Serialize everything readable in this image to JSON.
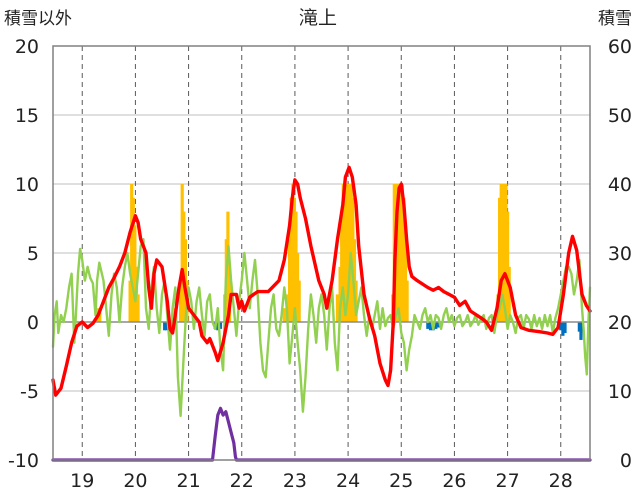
{
  "chart_data": {
    "type": "bar+line",
    "title": "滝上",
    "left_axis": {
      "label": "積雪以外",
      "range": [
        -10,
        20
      ],
      "ticks": [
        -10,
        -5,
        0,
        5,
        10,
        15,
        20
      ]
    },
    "right_axis": {
      "label": "積雪",
      "range": [
        0,
        60
      ],
      "ticks": [
        0,
        10,
        20,
        30,
        40,
        50,
        60
      ]
    },
    "x_range": [
      18.45,
      28.55
    ],
    "x_ticks": [
      19,
      20,
      21,
      22,
      23,
      24,
      25,
      26,
      27,
      28
    ],
    "grid": true,
    "colors": {
      "temperature": "#ff0000",
      "wind": "#92d050",
      "snow_depth": "#7030a0",
      "precip": "#ffc000",
      "sunshine": "#0070c0"
    },
    "precip_bars": [
      [
        19.3,
        1
      ],
      [
        19.33,
        1
      ],
      [
        19.9,
        3
      ],
      [
        19.93,
        10
      ],
      [
        19.96,
        9
      ],
      [
        19.99,
        7
      ],
      [
        20.02,
        4
      ],
      [
        20.05,
        2
      ],
      [
        20.75,
        1
      ],
      [
        20.85,
        3
      ],
      [
        20.88,
        10
      ],
      [
        20.91,
        8
      ],
      [
        20.94,
        6
      ],
      [
        20.97,
        3
      ],
      [
        21.68,
        2
      ],
      [
        21.71,
        6
      ],
      [
        21.74,
        8
      ],
      [
        21.77,
        4
      ],
      [
        22.8,
        1
      ],
      [
        22.85,
        2
      ],
      [
        22.9,
        6
      ],
      [
        22.93,
        9
      ],
      [
        22.96,
        10
      ],
      [
        22.99,
        9
      ],
      [
        23.02,
        8
      ],
      [
        23.05,
        5
      ],
      [
        23.08,
        3
      ],
      [
        23.8,
        2
      ],
      [
        23.85,
        4
      ],
      [
        23.88,
        8
      ],
      [
        23.91,
        10
      ],
      [
        23.94,
        10
      ],
      [
        23.97,
        10
      ],
      [
        24.0,
        10
      ],
      [
        24.03,
        10
      ],
      [
        24.06,
        10
      ],
      [
        24.09,
        9
      ],
      [
        24.12,
        6
      ],
      [
        24.15,
        3
      ],
      [
        24.84,
        2
      ],
      [
        24.87,
        10
      ],
      [
        24.9,
        10
      ],
      [
        24.93,
        10
      ],
      [
        24.96,
        10
      ],
      [
        24.99,
        10
      ],
      [
        25.02,
        10
      ],
      [
        25.05,
        9
      ],
      [
        25.08,
        6
      ],
      [
        25.11,
        3
      ],
      [
        26.82,
        2
      ],
      [
        26.85,
        9
      ],
      [
        26.88,
        10
      ],
      [
        26.91,
        10
      ],
      [
        26.94,
        10
      ],
      [
        26.97,
        10
      ],
      [
        27.0,
        8
      ],
      [
        27.03,
        4
      ]
    ],
    "sunshine_bars": [
      [
        20.55,
        -0.6
      ],
      [
        20.58,
        -0.6
      ],
      [
        20.62,
        -0.5
      ],
      [
        20.65,
        -0.5
      ],
      [
        21.5,
        -0.5
      ],
      [
        21.55,
        -0.6
      ],
      [
        21.6,
        -0.5
      ],
      [
        25.5,
        -0.5
      ],
      [
        25.55,
        -0.6
      ],
      [
        25.6,
        -0.6
      ],
      [
        25.65,
        -0.5
      ],
      [
        25.7,
        -0.4
      ],
      [
        28.0,
        -0.6
      ],
      [
        28.04,
        -1.0
      ],
      [
        28.08,
        -0.8
      ],
      [
        28.35,
        -0.7
      ],
      [
        28.38,
        -1.3
      ]
    ],
    "temperature": [
      [
        18.45,
        -4.2
      ],
      [
        18.5,
        -5.3
      ],
      [
        18.6,
        -4.8
      ],
      [
        18.7,
        -3.2
      ],
      [
        18.8,
        -1.5
      ],
      [
        18.9,
        -0.3
      ],
      [
        19.0,
        0.0
      ],
      [
        19.1,
        -0.4
      ],
      [
        19.2,
        -0.1
      ],
      [
        19.3,
        0.5
      ],
      [
        19.4,
        1.5
      ],
      [
        19.5,
        2.5
      ],
      [
        19.6,
        3.2
      ],
      [
        19.7,
        4.0
      ],
      [
        19.8,
        5.0
      ],
      [
        19.9,
        6.5
      ],
      [
        20.0,
        7.7
      ],
      [
        20.05,
        7.2
      ],
      [
        20.1,
        6.0
      ],
      [
        20.2,
        5.0
      ],
      [
        20.25,
        2.5
      ],
      [
        20.3,
        1.0
      ],
      [
        20.35,
        3.5
      ],
      [
        20.4,
        4.5
      ],
      [
        20.5,
        4.0
      ],
      [
        20.6,
        1.5
      ],
      [
        20.65,
        -0.5
      ],
      [
        20.7,
        -0.8
      ],
      [
        20.75,
        0.5
      ],
      [
        20.82,
        2.5
      ],
      [
        20.88,
        3.8
      ],
      [
        20.93,
        2.5
      ],
      [
        21.0,
        1.0
      ],
      [
        21.1,
        0.5
      ],
      [
        21.2,
        0.0
      ],
      [
        21.25,
        -1.0
      ],
      [
        21.35,
        -1.5
      ],
      [
        21.4,
        -1.2
      ],
      [
        21.5,
        -2.2
      ],
      [
        21.55,
        -2.8
      ],
      [
        21.65,
        -1.5
      ],
      [
        21.7,
        -0.5
      ],
      [
        21.75,
        0.5
      ],
      [
        21.8,
        2.0
      ],
      [
        21.9,
        2.0
      ],
      [
        21.95,
        1.0
      ],
      [
        22.0,
        1.5
      ],
      [
        22.05,
        0.8
      ],
      [
        22.15,
        1.8
      ],
      [
        22.3,
        2.2
      ],
      [
        22.5,
        2.2
      ],
      [
        22.7,
        3.0
      ],
      [
        22.8,
        4.5
      ],
      [
        22.9,
        7.0
      ],
      [
        22.95,
        9.0
      ],
      [
        23.0,
        10.3
      ],
      [
        23.05,
        10.0
      ],
      [
        23.1,
        9.0
      ],
      [
        23.2,
        7.5
      ],
      [
        23.3,
        5.5
      ],
      [
        23.45,
        3.0
      ],
      [
        23.55,
        2.0
      ],
      [
        23.6,
        1.0
      ],
      [
        23.7,
        3.0
      ],
      [
        23.8,
        6.0
      ],
      [
        23.9,
        8.5
      ],
      [
        23.95,
        10.5
      ],
      [
        24.02,
        11.2
      ],
      [
        24.08,
        10.5
      ],
      [
        24.15,
        8.5
      ],
      [
        24.2,
        5.5
      ],
      [
        24.3,
        2.0
      ],
      [
        24.4,
        0.3
      ],
      [
        24.5,
        -1.0
      ],
      [
        24.6,
        -3.0
      ],
      [
        24.7,
        -4.2
      ],
      [
        24.75,
        -4.6
      ],
      [
        24.8,
        -3.5
      ],
      [
        24.85,
        0.0
      ],
      [
        24.88,
        4.5
      ],
      [
        24.92,
        8.0
      ],
      [
        24.96,
        9.7
      ],
      [
        25.0,
        10.0
      ],
      [
        25.05,
        8.5
      ],
      [
        25.1,
        6.0
      ],
      [
        25.15,
        4.0
      ],
      [
        25.2,
        3.3
      ],
      [
        25.3,
        3.0
      ],
      [
        25.5,
        2.5
      ],
      [
        25.6,
        2.3
      ],
      [
        25.7,
        2.5
      ],
      [
        25.8,
        2.2
      ],
      [
        25.9,
        2.0
      ],
      [
        26.0,
        1.8
      ],
      [
        26.1,
        1.2
      ],
      [
        26.2,
        1.5
      ],
      [
        26.3,
        0.8
      ],
      [
        26.5,
        0.3
      ],
      [
        26.6,
        0.0
      ],
      [
        26.7,
        -0.6
      ],
      [
        26.8,
        1.0
      ],
      [
        26.88,
        3.0
      ],
      [
        26.95,
        3.5
      ],
      [
        27.05,
        2.5
      ],
      [
        27.15,
        0.5
      ],
      [
        27.25,
        -0.4
      ],
      [
        27.4,
        -0.6
      ],
      [
        27.6,
        -0.7
      ],
      [
        27.75,
        -0.8
      ],
      [
        27.85,
        -0.9
      ],
      [
        27.95,
        -0.4
      ],
      [
        28.05,
        2.0
      ],
      [
        28.15,
        5.0
      ],
      [
        28.22,
        6.2
      ],
      [
        28.3,
        5.2
      ],
      [
        28.4,
        2.0
      ],
      [
        28.48,
        1.2
      ],
      [
        28.55,
        0.8
      ]
    ],
    "wind": [
      [
        18.45,
        -1.8
      ],
      [
        18.48,
        0.5
      ],
      [
        18.52,
        1.5
      ],
      [
        18.55,
        -0.8
      ],
      [
        18.6,
        0.5
      ],
      [
        18.65,
        0.0
      ],
      [
        18.7,
        1.0
      ],
      [
        18.75,
        2.5
      ],
      [
        18.8,
        3.5
      ],
      [
        18.85,
        -1.5
      ],
      [
        18.88,
        0.5
      ],
      [
        18.92,
        3.5
      ],
      [
        18.96,
        5.3
      ],
      [
        19.0,
        4.5
      ],
      [
        19.05,
        3.0
      ],
      [
        19.1,
        4.0
      ],
      [
        19.15,
        3.2
      ],
      [
        19.2,
        2.8
      ],
      [
        19.25,
        0.5
      ],
      [
        19.28,
        3.0
      ],
      [
        19.32,
        4.3
      ],
      [
        19.4,
        3.0
      ],
      [
        19.45,
        1.0
      ],
      [
        19.5,
        -1.0
      ],
      [
        19.55,
        2.0
      ],
      [
        19.6,
        3.5
      ],
      [
        19.65,
        2.5
      ],
      [
        19.7,
        0.0
      ],
      [
        19.75,
        2.5
      ],
      [
        19.8,
        4.0
      ],
      [
        19.85,
        5.0
      ],
      [
        19.9,
        3.5
      ],
      [
        19.95,
        2.5
      ],
      [
        20.0,
        1.5
      ],
      [
        20.05,
        3.5
      ],
      [
        20.1,
        5.5
      ],
      [
        20.15,
        6.0
      ],
      [
        20.2,
        1.0
      ],
      [
        20.25,
        -0.5
      ],
      [
        20.3,
        2.5
      ],
      [
        20.35,
        4.0
      ],
      [
        20.4,
        1.0
      ],
      [
        20.45,
        -0.8
      ],
      [
        20.5,
        2.0
      ],
      [
        20.55,
        3.0
      ],
      [
        20.6,
        0.5
      ],
      [
        20.65,
        -2.0
      ],
      [
        20.7,
        1.0
      ],
      [
        20.75,
        2.5
      ],
      [
        20.8,
        -4.0
      ],
      [
        20.85,
        -6.8
      ],
      [
        20.9,
        -3.0
      ],
      [
        20.95,
        0.5
      ],
      [
        21.0,
        2.5
      ],
      [
        21.05,
        1.5
      ],
      [
        21.1,
        -0.5
      ],
      [
        21.15,
        1.5
      ],
      [
        21.2,
        2.5
      ],
      [
        21.25,
        0.5
      ],
      [
        21.3,
        -1.0
      ],
      [
        21.35,
        1.5
      ],
      [
        21.4,
        2.0
      ],
      [
        21.45,
        0.0
      ],
      [
        21.5,
        -0.5
      ],
      [
        21.55,
        1.0
      ],
      [
        21.6,
        -2.0
      ],
      [
        21.65,
        -3.5
      ],
      [
        21.7,
        3.0
      ],
      [
        21.75,
        5.5
      ],
      [
        21.8,
        3.0
      ],
      [
        21.85,
        1.0
      ],
      [
        21.9,
        -1.0
      ],
      [
        21.95,
        1.5
      ],
      [
        22.0,
        3.0
      ],
      [
        22.05,
        5.0
      ],
      [
        22.1,
        3.0
      ],
      [
        22.15,
        1.0
      ],
      [
        22.2,
        3.0
      ],
      [
        22.25,
        4.5
      ],
      [
        22.3,
        2.0
      ],
      [
        22.35,
        -1.5
      ],
      [
        22.4,
        -3.5
      ],
      [
        22.45,
        -4.0
      ],
      [
        22.5,
        -1.5
      ],
      [
        22.55,
        1.0
      ],
      [
        22.6,
        2.0
      ],
      [
        22.65,
        -0.5
      ],
      [
        22.7,
        -1.0
      ],
      [
        22.75,
        0.5
      ],
      [
        22.8,
        2.5
      ],
      [
        22.85,
        1.0
      ],
      [
        22.9,
        -3.0
      ],
      [
        22.95,
        -1.0
      ],
      [
        23.0,
        1.0
      ],
      [
        23.05,
        -1.5
      ],
      [
        23.1,
        -3.5
      ],
      [
        23.15,
        -6.5
      ],
      [
        23.2,
        -4.0
      ],
      [
        23.25,
        -0.5
      ],
      [
        23.3,
        2.0
      ],
      [
        23.35,
        0.5
      ],
      [
        23.4,
        -1.5
      ],
      [
        23.45,
        1.0
      ],
      [
        23.5,
        2.0
      ],
      [
        23.55,
        0.5
      ],
      [
        23.6,
        -2.0
      ],
      [
        23.65,
        1.0
      ],
      [
        23.7,
        2.5
      ],
      [
        23.75,
        -1.5
      ],
      [
        23.8,
        -3.5
      ],
      [
        23.85,
        1.0
      ],
      [
        23.9,
        2.5
      ],
      [
        23.95,
        0.5
      ],
      [
        24.0,
        2.0
      ],
      [
        24.05,
        5.0
      ],
      [
        24.1,
        3.0
      ],
      [
        24.15,
        0.5
      ],
      [
        24.2,
        1.5
      ],
      [
        24.25,
        2.5
      ],
      [
        24.3,
        0.5
      ],
      [
        24.35,
        -1.0
      ],
      [
        24.4,
        0.5
      ],
      [
        24.45,
        -0.5
      ],
      [
        24.5,
        0.5
      ],
      [
        24.55,
        1.5
      ],
      [
        24.6,
        -0.5
      ],
      [
        24.65,
        1.0
      ],
      [
        24.7,
        -0.3
      ],
      [
        24.75,
        0.3
      ],
      [
        24.8,
        0.5
      ],
      [
        24.85,
        -0.5
      ],
      [
        24.9,
        0.5
      ],
      [
        24.95,
        1.0
      ],
      [
        25.0,
        -0.8
      ],
      [
        25.05,
        -1.5
      ],
      [
        25.1,
        -3.5
      ],
      [
        25.15,
        -2.0
      ],
      [
        25.2,
        -1.0
      ],
      [
        25.25,
        0.5
      ],
      [
        25.3,
        0.0
      ],
      [
        25.35,
        -0.5
      ],
      [
        25.4,
        0.5
      ],
      [
        25.45,
        1.0
      ],
      [
        25.5,
        0.0
      ],
      [
        25.55,
        0.5
      ],
      [
        25.6,
        -0.5
      ],
      [
        25.65,
        0.5
      ],
      [
        25.7,
        0.3
      ],
      [
        25.75,
        -0.5
      ],
      [
        25.8,
        0.5
      ],
      [
        25.85,
        1.0
      ],
      [
        25.9,
        0.0
      ],
      [
        25.95,
        0.5
      ],
      [
        26.0,
        -0.3
      ],
      [
        26.05,
        0.3
      ],
      [
        26.1,
        0.5
      ],
      [
        26.15,
        -0.3
      ],
      [
        26.2,
        0.0
      ],
      [
        26.25,
        0.5
      ],
      [
        26.3,
        -0.3
      ],
      [
        26.35,
        0.0
      ],
      [
        26.4,
        0.5
      ],
      [
        26.45,
        -0.2
      ],
      [
        26.5,
        0.2
      ],
      [
        26.55,
        0.5
      ],
      [
        26.6,
        -0.5
      ],
      [
        26.65,
        0.3
      ],
      [
        26.7,
        0.5
      ],
      [
        26.75,
        -0.8
      ],
      [
        26.8,
        0.5
      ],
      [
        26.85,
        1.0
      ],
      [
        26.9,
        2.0
      ],
      [
        26.95,
        1.0
      ],
      [
        27.0,
        -0.5
      ],
      [
        27.05,
        0.5
      ],
      [
        27.1,
        0.0
      ],
      [
        27.15,
        -0.8
      ],
      [
        27.2,
        0.3
      ],
      [
        27.25,
        0.5
      ],
      [
        27.3,
        -0.5
      ],
      [
        27.35,
        0.5
      ],
      [
        27.4,
        0.2
      ],
      [
        27.45,
        -0.5
      ],
      [
        27.5,
        0.5
      ],
      [
        27.55,
        -0.3
      ],
      [
        27.6,
        0.3
      ],
      [
        27.65,
        -0.5
      ],
      [
        27.7,
        0.5
      ],
      [
        27.75,
        -0.3
      ],
      [
        27.8,
        0.5
      ],
      [
        27.85,
        -0.8
      ],
      [
        27.9,
        0.3
      ],
      [
        27.95,
        1.0
      ],
      [
        28.0,
        2.0
      ],
      [
        28.05,
        3.0
      ],
      [
        28.1,
        4.0
      ],
      [
        28.15,
        4.0
      ],
      [
        28.2,
        3.5
      ],
      [
        28.25,
        2.0
      ],
      [
        28.3,
        3.0
      ],
      [
        28.35,
        4.5
      ],
      [
        28.4,
        1.0
      ],
      [
        28.43,
        -0.5
      ],
      [
        28.46,
        -2.5
      ],
      [
        28.49,
        -3.8
      ],
      [
        28.52,
        0.0
      ],
      [
        28.55,
        2.5
      ]
    ],
    "snow_depth": [
      [
        18.45,
        0
      ],
      [
        21.45,
        0
      ],
      [
        21.5,
        3.5
      ],
      [
        21.55,
        6.5
      ],
      [
        21.6,
        7.5
      ],
      [
        21.65,
        6.5
      ],
      [
        21.7,
        7.0
      ],
      [
        21.75,
        5.5
      ],
      [
        21.8,
        4.0
      ],
      [
        21.85,
        2.5
      ],
      [
        21.88,
        0.5
      ],
      [
        21.9,
        0
      ],
      [
        28.55,
        0
      ]
    ]
  }
}
